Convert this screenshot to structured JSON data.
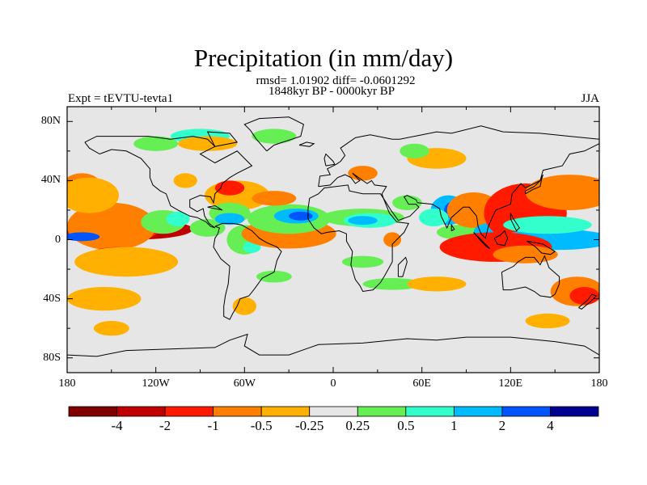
{
  "title": "Precipitation (in mm/day)",
  "stats_line": "rmsd= 1.01902 diff= -0.0601292",
  "period_line": "1848kyr BP - 0000kyr BP",
  "experiment": "Expt = tEVTU-tevta1",
  "season": "JJA",
  "map": {
    "projection": "cylindrical-equidistant",
    "lon_range": [
      -180,
      180
    ],
    "lat_range": [
      -90,
      90
    ],
    "background_color": "#e6e6e6",
    "y_ticks": [
      {
        "lat": 80,
        "label": "80N"
      },
      {
        "lat": 40,
        "label": "40N"
      },
      {
        "lat": 0,
        "label": "0"
      },
      {
        "lat": -40,
        "label": "40S"
      },
      {
        "lat": -80,
        "label": "80S"
      }
    ],
    "x_ticks": [
      {
        "lon": -180,
        "label": "180"
      },
      {
        "lon": -120,
        "label": "120W"
      },
      {
        "lon": -60,
        "label": "60W"
      },
      {
        "lon": 0,
        "label": "0"
      },
      {
        "lon": 60,
        "label": "60E"
      },
      {
        "lon": 120,
        "label": "120E"
      },
      {
        "lon": 180,
        "label": "180"
      }
    ]
  },
  "colorbar": {
    "colors": [
      "#800000",
      "#c00000",
      "#ff1a00",
      "#ff7f00",
      "#ffb000",
      "#e6e6e6",
      "#66ee55",
      "#33ffcc",
      "#00bbff",
      "#0055ff",
      "#000090"
    ],
    "labels": [
      "-4",
      "-2",
      "-1",
      "-0.5",
      "-0.25",
      "0.25",
      "0.5",
      "1",
      "2",
      "4"
    ]
  },
  "anomalies": [
    {
      "c": 0,
      "lon": -150,
      "lat": 7,
      "rx": 25,
      "ry": 5
    },
    {
      "c": 1,
      "lon": -135,
      "lat": 7,
      "rx": 40,
      "ry": 7
    },
    {
      "c": 2,
      "lon": -150,
      "lat": 7,
      "rx": 32,
      "ry": 10
    },
    {
      "c": 3,
      "lon": -150,
      "lat": 9,
      "rx": 30,
      "ry": 16
    },
    {
      "c": 9,
      "lon": -170,
      "lat": 2,
      "rx": 12,
      "ry": 3
    },
    {
      "c": 2,
      "lon": -145,
      "lat": -10,
      "rx": 20,
      "ry": 5
    },
    {
      "c": 4,
      "lon": -140,
      "lat": -15,
      "rx": 35,
      "ry": 10
    },
    {
      "c": 4,
      "lon": -155,
      "lat": -40,
      "rx": 25,
      "ry": 8
    },
    {
      "c": 4,
      "lon": -150,
      "lat": -60,
      "rx": 12,
      "ry": 5
    },
    {
      "c": 3,
      "lon": -170,
      "lat": 35,
      "rx": 14,
      "ry": 10
    },
    {
      "c": 4,
      "lon": -165,
      "lat": 30,
      "rx": 20,
      "ry": 12
    },
    {
      "c": 6,
      "lon": -115,
      "lat": 12,
      "rx": 15,
      "ry": 8
    },
    {
      "c": 7,
      "lon": -105,
      "lat": 14,
      "rx": 8,
      "ry": 5
    },
    {
      "c": 6,
      "lon": -85,
      "lat": 8,
      "rx": 12,
      "ry": 6
    },
    {
      "c": 4,
      "lon": -65,
      "lat": 30,
      "rx": 22,
      "ry": 10
    },
    {
      "c": 2,
      "lon": -70,
      "lat": 35,
      "rx": 10,
      "ry": 5
    },
    {
      "c": 4,
      "lon": -100,
      "lat": 40,
      "rx": 8,
      "ry": 5
    },
    {
      "c": 6,
      "lon": -70,
      "lat": 18,
      "rx": 14,
      "ry": 7
    },
    {
      "c": 8,
      "lon": -70,
      "lat": 14,
      "rx": 10,
      "ry": 4
    },
    {
      "c": 6,
      "lon": -60,
      "lat": 0,
      "rx": 12,
      "ry": 10
    },
    {
      "c": 7,
      "lon": -55,
      "lat": -5,
      "rx": 6,
      "ry": 4
    },
    {
      "c": 1,
      "lon": -30,
      "lat": 2,
      "rx": 22,
      "ry": 5
    },
    {
      "c": 2,
      "lon": -28,
      "lat": 2,
      "rx": 28,
      "ry": 7
    },
    {
      "c": 3,
      "lon": -30,
      "lat": 4,
      "rx": 32,
      "ry": 10
    },
    {
      "c": 6,
      "lon": -30,
      "lat": 14,
      "rx": 28,
      "ry": 10
    },
    {
      "c": 8,
      "lon": -25,
      "lat": 16,
      "rx": 15,
      "ry": 5
    },
    {
      "c": 9,
      "lon": -22,
      "lat": 16,
      "rx": 8,
      "ry": 3
    },
    {
      "c": 3,
      "lon": -40,
      "lat": 28,
      "rx": 15,
      "ry": 5
    },
    {
      "c": 4,
      "lon": -60,
      "lat": -45,
      "rx": 8,
      "ry": 6
    },
    {
      "c": 6,
      "lon": -40,
      "lat": -25,
      "rx": 12,
      "ry": 4
    },
    {
      "c": 6,
      "lon": 20,
      "lat": 15,
      "rx": 28,
      "ry": 6
    },
    {
      "c": 7,
      "lon": 25,
      "lat": 13,
      "rx": 18,
      "ry": 5
    },
    {
      "c": 8,
      "lon": 20,
      "lat": 13,
      "rx": 10,
      "ry": 3
    },
    {
      "c": 6,
      "lon": 50,
      "lat": 25,
      "rx": 10,
      "ry": 5
    },
    {
      "c": 3,
      "lon": 20,
      "lat": 45,
      "rx": 10,
      "ry": 5
    },
    {
      "c": 4,
      "lon": 70,
      "lat": 55,
      "rx": 20,
      "ry": 7
    },
    {
      "c": 6,
      "lon": 20,
      "lat": -15,
      "rx": 14,
      "ry": 4
    },
    {
      "c": 6,
      "lon": 40,
      "lat": -30,
      "rx": 20,
      "ry": 4
    },
    {
      "c": 3,
      "lon": 40,
      "lat": 0,
      "rx": 6,
      "ry": 5
    },
    {
      "c": 8,
      "lon": 78,
      "lat": 20,
      "rx": 12,
      "ry": 10
    },
    {
      "c": 9,
      "lon": 82,
      "lat": 20,
      "rx": 7,
      "ry": 6
    },
    {
      "c": 7,
      "lon": 68,
      "lat": 15,
      "rx": 10,
      "ry": 6
    },
    {
      "c": 6,
      "lon": 85,
      "lat": 5,
      "rx": 15,
      "ry": 5
    },
    {
      "c": 1,
      "lon": 100,
      "lat": 18,
      "rx": 10,
      "ry": 8
    },
    {
      "c": 3,
      "lon": 95,
      "lat": 20,
      "rx": 18,
      "ry": 12
    },
    {
      "c": 8,
      "lon": 105,
      "lat": 5,
      "rx": 10,
      "ry": 6
    },
    {
      "c": 1,
      "lon": 125,
      "lat": 18,
      "rx": 18,
      "ry": 14
    },
    {
      "c": 0,
      "lon": 127,
      "lat": 22,
      "rx": 10,
      "ry": 8
    },
    {
      "c": 2,
      "lon": 130,
      "lat": 18,
      "rx": 28,
      "ry": 20
    },
    {
      "c": 1,
      "lon": 165,
      "lat": 35,
      "rx": 22,
      "ry": 8
    },
    {
      "c": 3,
      "lon": 160,
      "lat": 32,
      "rx": 30,
      "ry": 12
    },
    {
      "c": 9,
      "lon": 165,
      "lat": 0,
      "rx": 22,
      "ry": 4
    },
    {
      "c": 8,
      "lon": 150,
      "lat": 0,
      "rx": 40,
      "ry": 7
    },
    {
      "c": 7,
      "lon": 145,
      "lat": 10,
      "rx": 30,
      "ry": 6
    },
    {
      "c": 1,
      "lon": 105,
      "lat": -5,
      "rx": 28,
      "ry": 6
    },
    {
      "c": 0,
      "lon": 110,
      "lat": -7,
      "rx": 15,
      "ry": 3
    },
    {
      "c": 2,
      "lon": 110,
      "lat": -5,
      "rx": 38,
      "ry": 10
    },
    {
      "c": 3,
      "lon": 130,
      "lat": -10,
      "rx": 22,
      "ry": 6
    },
    {
      "c": 4,
      "lon": 70,
      "lat": -30,
      "rx": 20,
      "ry": 5
    },
    {
      "c": 3,
      "lon": 165,
      "lat": -35,
      "rx": 18,
      "ry": 10
    },
    {
      "c": 2,
      "lon": 170,
      "lat": -38,
      "rx": 10,
      "ry": 6
    },
    {
      "c": 4,
      "lon": 145,
      "lat": -55,
      "rx": 15,
      "ry": 5
    },
    {
      "c": 6,
      "lon": 55,
      "lat": 60,
      "rx": 10,
      "ry": 5
    },
    {
      "c": 6,
      "lon": -120,
      "lat": 65,
      "rx": 15,
      "ry": 5
    },
    {
      "c": 7,
      "lon": -90,
      "lat": 70,
      "rx": 20,
      "ry": 5
    },
    {
      "c": 6,
      "lon": -40,
      "lat": 70,
      "rx": 15,
      "ry": 5
    },
    {
      "c": 4,
      "lon": -85,
      "lat": 65,
      "rx": 20,
      "ry": 5
    }
  ]
}
